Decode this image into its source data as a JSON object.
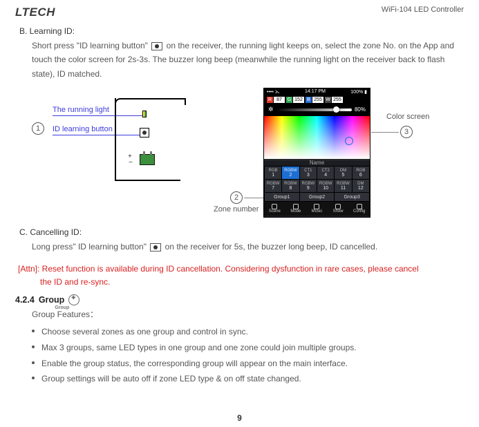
{
  "header": {
    "logo": "LTECH",
    "product": "WiFi-104 LED Controller"
  },
  "sectionB": {
    "title": "B. Learning ID:",
    "text_a": "Short press \"ID learning button\"",
    "text_b": "on the receiver, the running light keeps on, select the zone No. on the App and touch the color screen for 2s-3s. The buzzer long beep (meanwhile the running light on the receiver back to flash state), ID matched."
  },
  "recv": {
    "running_light": "The running light",
    "id_button": "ID learning button"
  },
  "phone": {
    "status": {
      "left": "•••• ⋋",
      "time": "14:17 PM",
      "right": "100% ▮"
    },
    "rgb": {
      "r": {
        "ch": "R",
        "val": "87",
        "color": "#e5392a"
      },
      "g": {
        "ch": "G",
        "val": "152",
        "color": "#2fa84f"
      },
      "b": {
        "ch": "B",
        "val": "255",
        "color": "#2a6fd6"
      },
      "w": {
        "ch": "W",
        "val": "255",
        "color": "#4a4a4a"
      }
    },
    "slider_pct": "80%",
    "name": "Name",
    "zones": [
      {
        "t": "RGB",
        "n": "1"
      },
      {
        "t": "RGBW",
        "n": "2"
      },
      {
        "t": "CT1",
        "n": "3"
      },
      {
        "t": "CT2",
        "n": "4"
      },
      {
        "t": "DM",
        "n": "5"
      },
      {
        "t": "RGB",
        "n": "6"
      },
      {
        "t": "RGBW",
        "n": "7"
      },
      {
        "t": "RGBW",
        "n": "8"
      },
      {
        "t": "RGBW",
        "n": "9"
      },
      {
        "t": "RGBW",
        "n": "10"
      },
      {
        "t": "RGBW",
        "n": "11"
      },
      {
        "t": "DM",
        "n": "12"
      }
    ],
    "selected_zone_index": 1,
    "groups": [
      "Group1",
      "Group2",
      "Group3"
    ],
    "bottom": [
      "Scene",
      "Mode",
      "Music",
      "Show",
      "Config"
    ]
  },
  "callouts": {
    "one": "1",
    "two": "2",
    "three": "3",
    "zone_number": "Zone number",
    "color_screen": "Color screen"
  },
  "sectionC": {
    "title": "C. Cancelling ID:",
    "text_a": "Long press\" ID learning button\"",
    "text_b": "on the receiver for 5s, the buzzer long beep, ID cancelled."
  },
  "attn": {
    "line1": "[Attn]: Reset function is available during ID cancellation. Considering dysfunction in rare cases, please cancel",
    "line2": "the ID and re-sync."
  },
  "sec424": {
    "num": "4.2.4",
    "label": "Group",
    "icon_sub": "Group"
  },
  "features_title": "Group Features：",
  "features": [
    "Choose several zones as one group and control in sync.",
    "Max 3 groups, same LED types in one group and one zone could join multiple groups.",
    "Enable the group status, the corresponding group will appear on the main interface.",
    "Group settings will be auto off if zone LED type & on off state changed."
  ],
  "page": "9"
}
